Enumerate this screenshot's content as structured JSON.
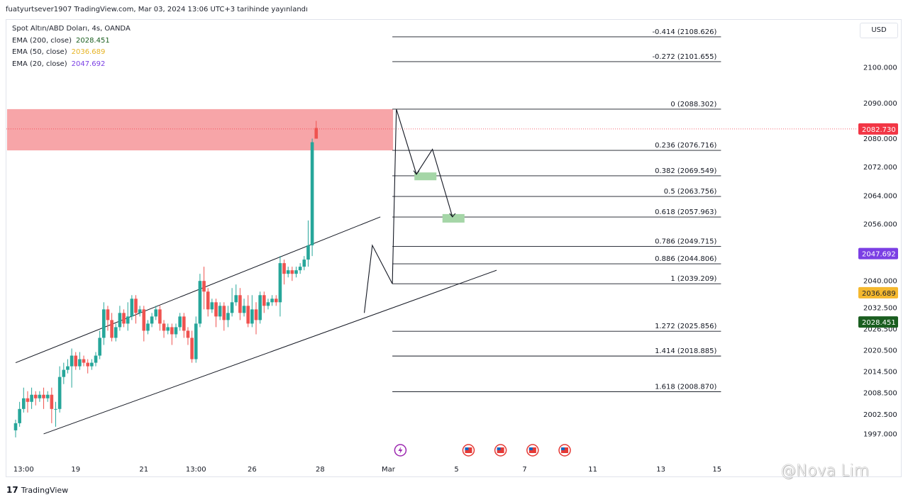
{
  "header": {
    "published": "fuatyurtsever1907 TradingView.com, Mar 03, 2024 13:06 UTC+3 tarihinde yayınlandı"
  },
  "legend": [
    {
      "label": "Spot Altın/ABD Doları, 4s, OANDA",
      "value": "",
      "color": "#1e222d"
    },
    {
      "label": "EMA (200, close)",
      "value": "2028.451",
      "color": "#1b5e20"
    },
    {
      "label": "EMA (50, close)",
      "value": "2036.689",
      "color": "#e6b322"
    },
    {
      "label": "EMA (20, close)",
      "value": "2047.692",
      "color": "#7b3fe4"
    }
  ],
  "currency": "USD",
  "footer": {
    "logo": "17",
    "brand": "TradingView"
  },
  "watermark": "@Nova Lim",
  "colors": {
    "up": "#26a69a",
    "down": "#ef5350",
    "zone": "#f7a5a8",
    "target": "#a5d6a7"
  },
  "chart_data": {
    "type": "candlestick",
    "y_range": [
      1992,
      2113
    ],
    "y_ticks": [
      "2100.000",
      "2090.000",
      "2080.000",
      "2072.000",
      "2064.000",
      "2056.000",
      "2040.000",
      "2032.500",
      "2026.500",
      "2020.500",
      "2014.500",
      "2008.500",
      "2002.500",
      "1997.000"
    ],
    "y_tick_values": [
      2100,
      2090,
      2080,
      2072,
      2064,
      2056,
      2040,
      2032.5,
      2026.5,
      2020.5,
      2014.5,
      2008.5,
      2002.5,
      1997
    ],
    "x_ticks": [
      {
        "label": "13:00",
        "bar": 2
      },
      {
        "label": "19",
        "bar": 15
      },
      {
        "label": "21",
        "bar": 32
      },
      {
        "label": "13:00",
        "bar": 45
      },
      {
        "label": "26",
        "bar": 59
      },
      {
        "label": "28",
        "bar": 76
      },
      {
        "label": "Mar",
        "bar": 93
      },
      {
        "label": "5",
        "bar": 110
      },
      {
        "label": "7",
        "bar": 127
      },
      {
        "label": "11",
        "bar": 144
      },
      {
        "label": "13",
        "bar": 161
      },
      {
        "label": "15",
        "bar": 175
      }
    ],
    "price_labels": [
      {
        "text": "2082.730",
        "value": 2082.73,
        "bg": "#f23645",
        "fg": "#ffffff"
      },
      {
        "text": "2047.692",
        "value": 2047.692,
        "bg": "#7b3fe4",
        "fg": "#ffffff"
      },
      {
        "text": "2036.689",
        "value": 2036.689,
        "bg": "#f5b82e",
        "fg": "#1e222d"
      },
      {
        "text": "2028.451",
        "value": 2028.451,
        "bg": "#1b5e20",
        "fg": "#ffffff"
      }
    ],
    "candles": [
      [
        1998,
        2000,
        1996,
        2001
      ],
      [
        2000,
        2004,
        1999,
        2006
      ],
      [
        2004,
        2007,
        2003,
        2010
      ],
      [
        2007,
        2006,
        2003,
        2009
      ],
      [
        2006,
        2008,
        2004,
        2010
      ],
      [
        2008,
        2007,
        2005,
        2009
      ],
      [
        2007,
        2008,
        2006,
        2009
      ],
      [
        2008,
        2007,
        2004,
        2010
      ],
      [
        2007,
        2008,
        2006,
        2009
      ],
      [
        2008,
        2004,
        2000,
        2010
      ],
      [
        2004,
        2004,
        1999,
        2006
      ],
      [
        2004,
        2013,
        2003,
        2016
      ],
      [
        2013,
        2015,
        2011,
        2017
      ],
      [
        2015,
        2016,
        2014,
        2018
      ],
      [
        2016,
        2019,
        2010,
        2021
      ],
      [
        2019,
        2016,
        2015,
        2020
      ],
      [
        2016,
        2018,
        2015,
        2020
      ],
      [
        2018,
        2017,
        2016,
        2019
      ],
      [
        2017,
        2016,
        2014,
        2018
      ],
      [
        2016,
        2017,
        2015,
        2018
      ],
      [
        2017,
        2019,
        2016,
        2020
      ],
      [
        2019,
        2024,
        2018,
        2026
      ],
      [
        2024,
        2032,
        2022,
        2034
      ],
      [
        2032,
        2029,
        2026,
        2033
      ],
      [
        2029,
        2024,
        2023,
        2031
      ],
      [
        2024,
        2027,
        2023,
        2028
      ],
      [
        2027,
        2031,
        2026,
        2033
      ],
      [
        2031,
        2028,
        2027,
        2032
      ],
      [
        2028,
        2030,
        2026,
        2034
      ],
      [
        2030,
        2035,
        2029,
        2036
      ],
      [
        2035,
        2031,
        2028,
        2036
      ],
      [
        2031,
        2032,
        2030,
        2033
      ],
      [
        2032,
        2026,
        2023,
        2033
      ],
      [
        2026,
        2028,
        2025,
        2029
      ],
      [
        2028,
        2030,
        2027,
        2031
      ],
      [
        2030,
        2032,
        2029,
        2033
      ],
      [
        2032,
        2028,
        2026,
        2033
      ],
      [
        2028,
        2026,
        2024,
        2029
      ],
      [
        2026,
        2027,
        2025,
        2028
      ],
      [
        2027,
        2025,
        2022,
        2028
      ],
      [
        2025,
        2027,
        2024,
        2028
      ],
      [
        2027,
        2030,
        2026,
        2031
      ],
      [
        2030,
        2026,
        2024,
        2031
      ],
      [
        2026,
        2024,
        2022,
        2027
      ],
      [
        2024,
        2018,
        2017,
        2026
      ],
      [
        2018,
        2028,
        2017,
        2030
      ],
      [
        2028,
        2040,
        2027,
        2042
      ],
      [
        2040,
        2037,
        2032,
        2044
      ],
      [
        2037,
        2032,
        2030,
        2038
      ],
      [
        2032,
        2034,
        2031,
        2035
      ],
      [
        2034,
        2030,
        2027,
        2035
      ],
      [
        2030,
        2033,
        2029,
        2034
      ],
      [
        2033,
        2029,
        2026,
        2034
      ],
      [
        2029,
        2031,
        2027,
        2033
      ],
      [
        2031,
        2034,
        2030,
        2038
      ],
      [
        2034,
        2036,
        2033,
        2039
      ],
      [
        2036,
        2031,
        2029,
        2038
      ],
      [
        2031,
        2033,
        2030,
        2035
      ],
      [
        2033,
        2028,
        2027,
        2036
      ],
      [
        2028,
        2032,
        2027,
        2036
      ],
      [
        2032,
        2029,
        2025,
        2034
      ],
      [
        2029,
        2036,
        2028,
        2037
      ],
      [
        2036,
        2033,
        2031,
        2037
      ],
      [
        2033,
        2034,
        2032,
        2035
      ],
      [
        2034,
        2035,
        2033,
        2036
      ],
      [
        2035,
        2034,
        2033,
        2036
      ],
      [
        2034,
        2045,
        2030,
        2047
      ],
      [
        2045,
        2042,
        2039,
        2046
      ],
      [
        2042,
        2043,
        2041,
        2044
      ],
      [
        2043,
        2042,
        2040,
        2044
      ],
      [
        2042,
        2043,
        2041,
        2044
      ],
      [
        2043,
        2044,
        2042,
        2045
      ],
      [
        2044,
        2046,
        2043,
        2047
      ],
      [
        2046,
        2050,
        2044,
        2057
      ],
      [
        2050,
        2079,
        2047,
        2080
      ],
      [
        2083,
        2080,
        2080,
        2085
      ]
    ],
    "candle_start_bar": 0,
    "candle_gap_note": "",
    "channel_upper": [
      [
        0,
        2017
      ],
      [
        91,
        2058
      ]
    ],
    "channel_lower": [
      [
        7,
        1997
      ],
      [
        120,
        2043
      ]
    ],
    "zone": {
      "top": 2088.3,
      "bottom": 2076.7,
      "bar_end": 94
    },
    "fib_start_bar": 94,
    "fib_end_bar": 176,
    "fib_levels": [
      {
        "label": "-0.414 (2108.626)",
        "value": 2108.626
      },
      {
        "label": "-0.272 (2101.655)",
        "value": 2101.655
      },
      {
        "label": "0 (2088.302)",
        "value": 2088.302
      },
      {
        "label": "0.236 (2076.716)",
        "value": 2076.716
      },
      {
        "label": "0.382 (2069.549)",
        "value": 2069.549
      },
      {
        "label": "0.5 (2063.756)",
        "value": 2063.756
      },
      {
        "label": "0.618 (2057.963)",
        "value": 2057.963
      },
      {
        "label": "0.786 (2049.715)",
        "value": 2049.715
      },
      {
        "label": "0.886 (2044.806)",
        "value": 2044.806
      },
      {
        "label": "1 (2039.209)",
        "value": 2039.209
      },
      {
        "label": "1.272 (2025.856)",
        "value": 2025.856
      },
      {
        "label": "1.414 (2018.885)",
        "value": 2018.885
      },
      {
        "label": "1.618 (2008.870)",
        "value": 2008.87
      }
    ],
    "zigzag": [
      [
        87,
        2031
      ],
      [
        89,
        2050
      ],
      [
        94,
        2039.2
      ],
      [
        95,
        2088.3
      ],
      [
        100,
        2070
      ],
      [
        104,
        2077
      ],
      [
        109,
        2058
      ]
    ],
    "targets": [
      {
        "bar_start": 99.5,
        "bar_end": 105,
        "value_top": 2070.5,
        "value_bottom": 2068.3
      },
      {
        "bar_start": 106.5,
        "bar_end": 112,
        "value_top": 2058.8,
        "value_bottom": 2056.4
      }
    ],
    "events": [
      {
        "type": "bolt",
        "bar": 96
      },
      {
        "type": "flag",
        "bar": 113
      },
      {
        "type": "flag",
        "bar": 121
      },
      {
        "type": "flag",
        "bar": 129
      },
      {
        "type": "flag",
        "bar": 137
      }
    ]
  }
}
